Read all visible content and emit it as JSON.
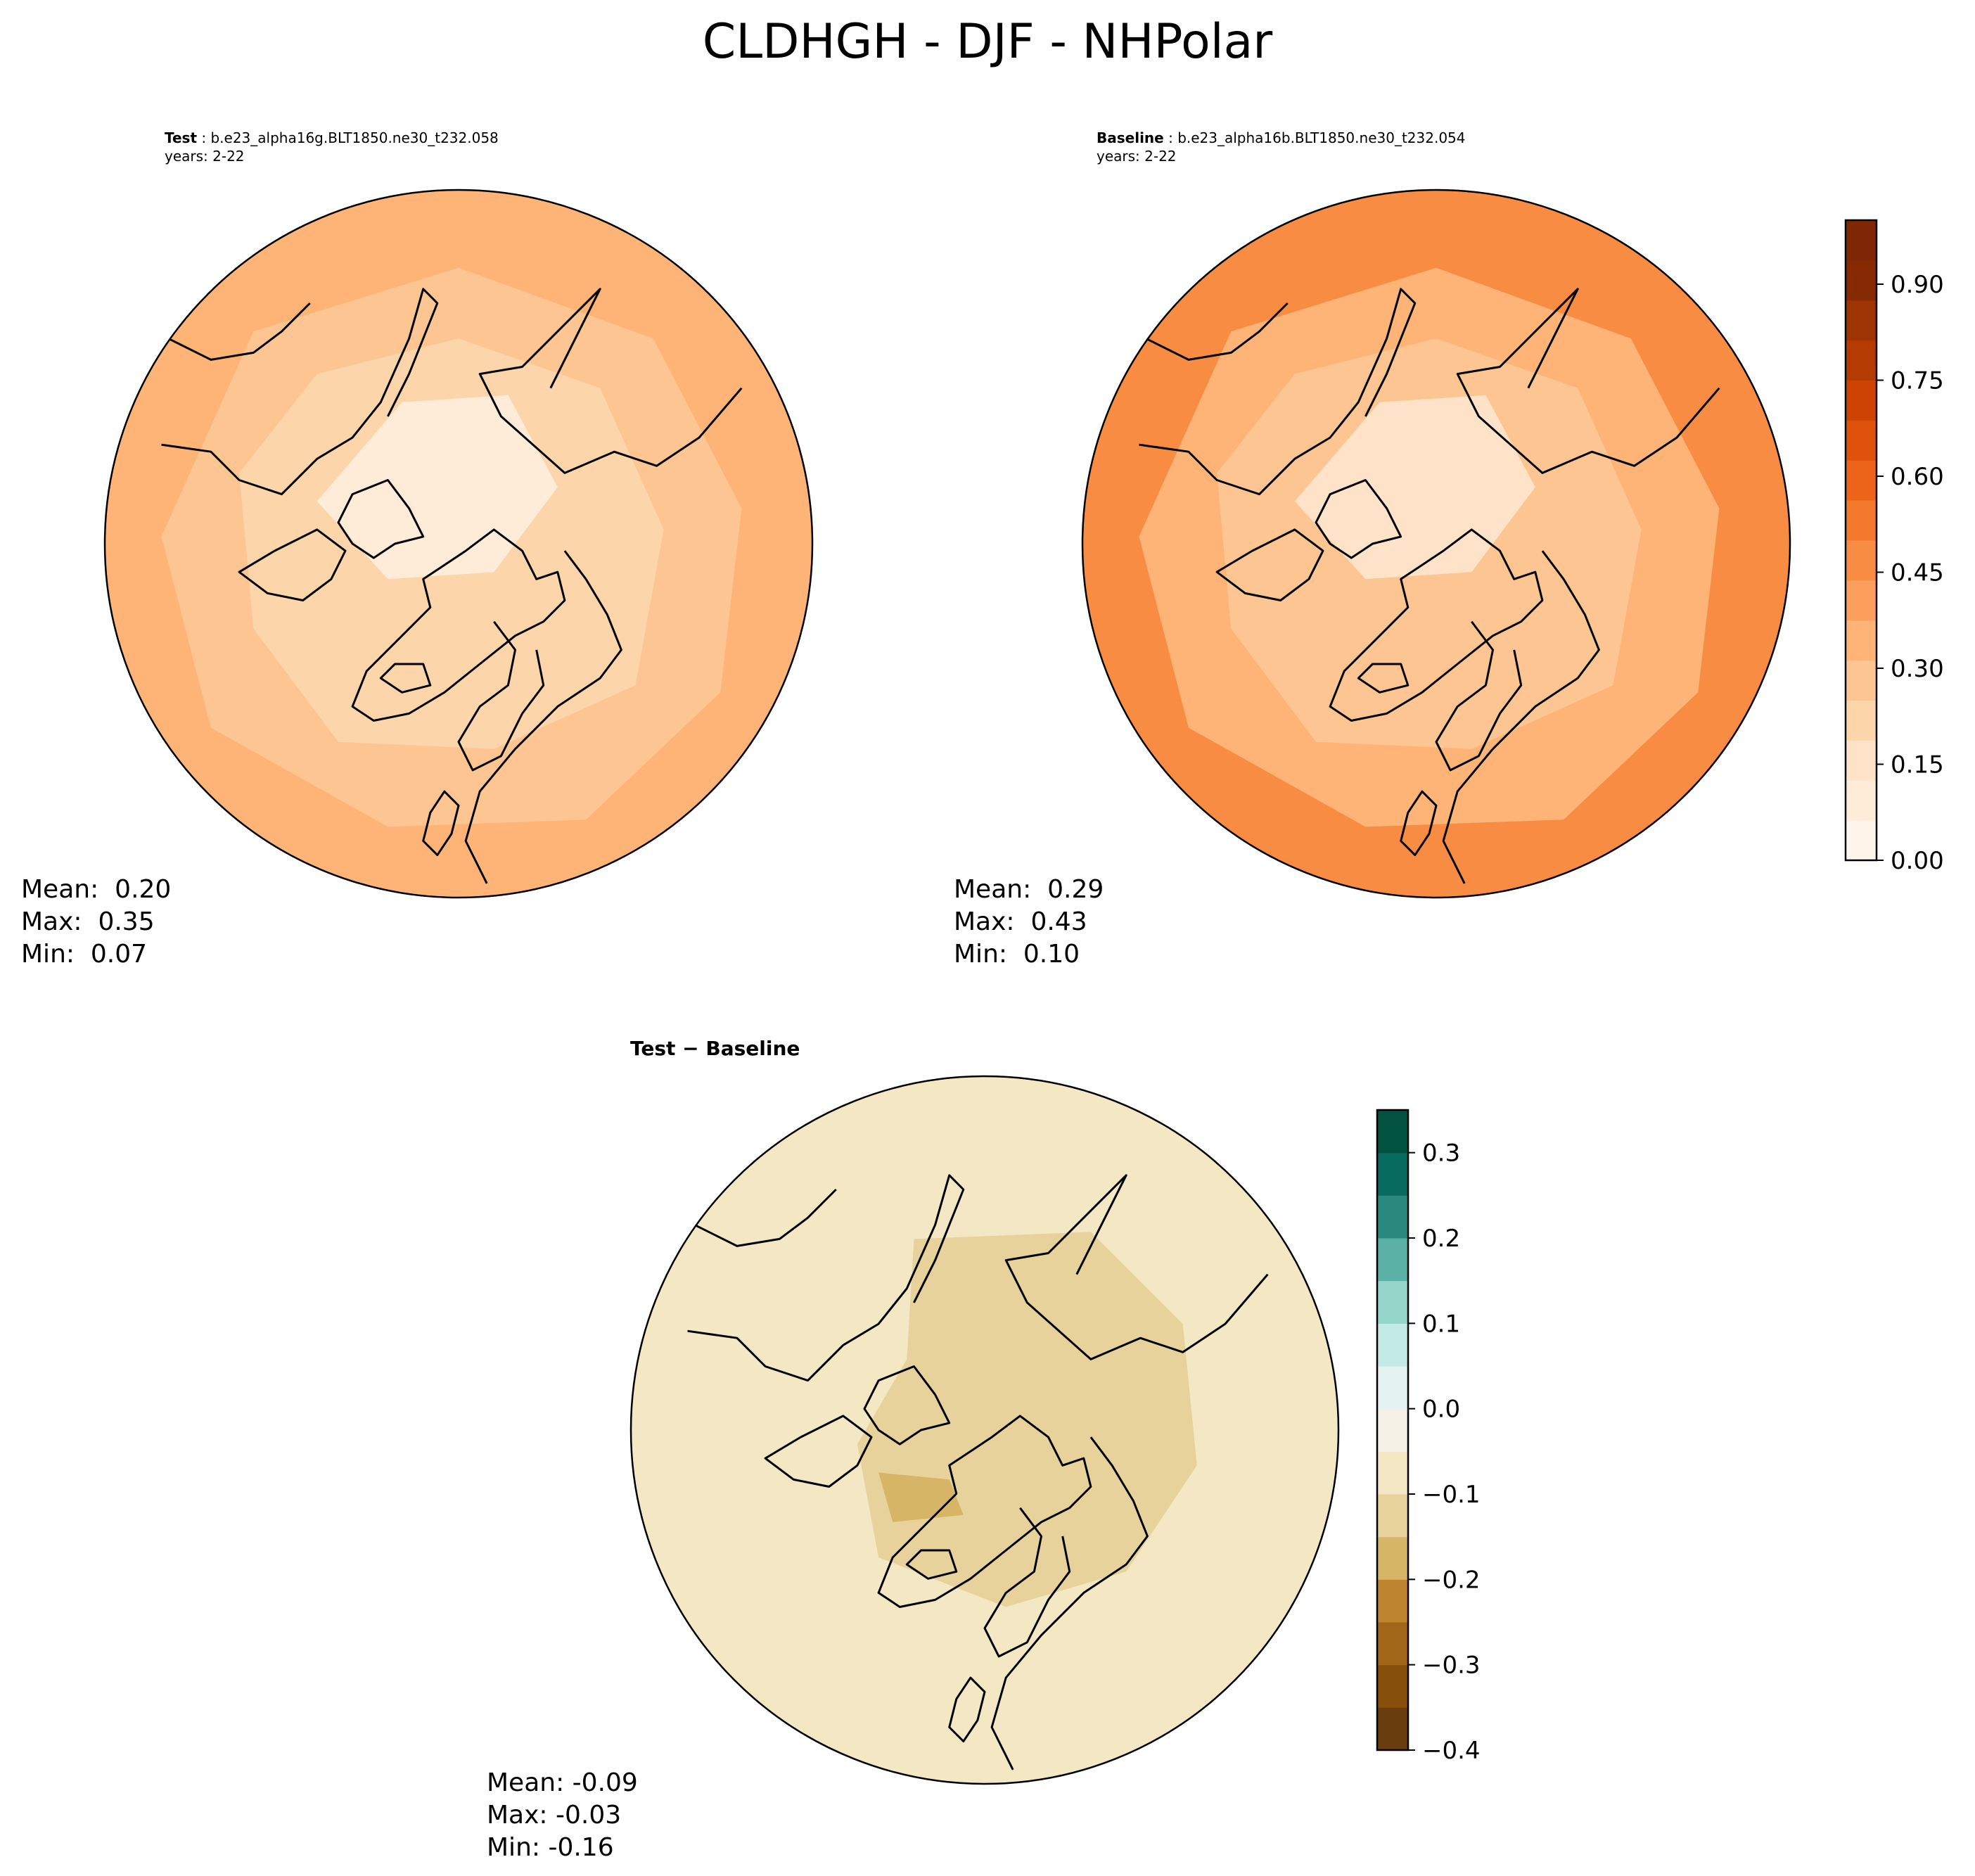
{
  "chart_data": [
    {
      "type": "heatmap",
      "title": "CLDHGH - DJF - NHPolar",
      "panel": "Test",
      "case": "b.e23_alpha16g.BLT1850.ne30_t232.058",
      "years": "years: 2-22",
      "stats": {
        "mean_label": "Mean:",
        "mean": "0.20",
        "max_label": "Max:",
        "max": "0.35",
        "min_label": "Min:",
        "min": "0.07"
      },
      "colorbar": {
        "ticks": [
          "0.00",
          "0.15",
          "0.30",
          "0.45",
          "0.60",
          "0.75",
          "0.90"
        ],
        "range": [
          0,
          1
        ],
        "colormap": "Oranges"
      }
    },
    {
      "type": "heatmap",
      "panel": "Baseline",
      "case": "b.e23_alpha16b.BLT1850.ne30_t232.054",
      "years": "years: 2-22",
      "stats": {
        "mean_label": "Mean:",
        "mean": "0.29",
        "max_label": "Max:",
        "max": "0.43",
        "min_label": "Min:",
        "min": "0.10"
      }
    },
    {
      "type": "heatmap",
      "panel": "Test − Baseline",
      "stats": {
        "mean_label": "Mean:",
        "mean": "-0.09",
        "max_label": "Max:",
        "max": "-0.03",
        "min_label": "Min:",
        "min": "-0.16"
      },
      "colorbar": {
        "ticks": [
          "0.3",
          "0.2",
          "0.1",
          "0.0",
          "−0.1",
          "−0.2",
          "−0.3",
          "−0.4"
        ],
        "range": [
          -0.4,
          0.35
        ],
        "colormap": "BrBG"
      }
    }
  ],
  "colors": {
    "oranges": [
      "#fff5eb",
      "#feecd9",
      "#fee3c8",
      "#fdd5ab",
      "#fdc591",
      "#fdb476",
      "#fd9f5c",
      "#f98c43",
      "#f4782c",
      "#ec6419",
      "#de520c",
      "#cd4402",
      "#b43b02",
      "#9e3303",
      "#862a04",
      "#7f2704"
    ],
    "brbg": [
      "#6a3d0c",
      "#86500b",
      "#a16617",
      "#bf842e",
      "#d7b566",
      "#e7d29b",
      "#f4e8c4",
      "#f5f1e7",
      "#e4f2f0",
      "#c3ebe5",
      "#93d5c9",
      "#5bb1a6",
      "#2a8a80",
      "#086b5f",
      "#01523f"
    ]
  }
}
